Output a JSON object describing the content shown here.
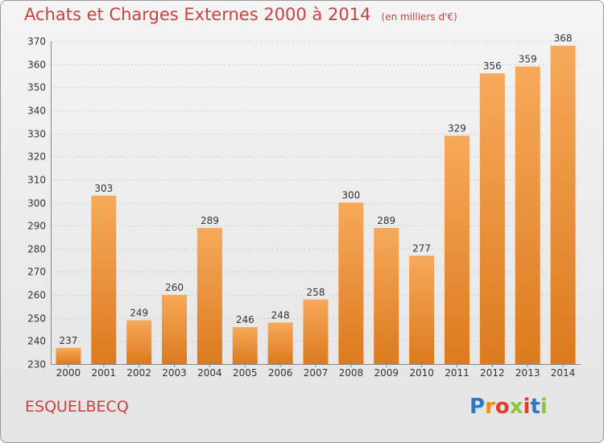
{
  "header": {
    "title": "Achats et Charges Externes 2000 à 2014",
    "unit": "(en milliers d'€)"
  },
  "footer": {
    "commune": "ESQUELBECQ",
    "logo_text": "Proxiti"
  },
  "colors": {
    "title": "#c9423f",
    "bar_top": "#f7a95a",
    "bar_bottom": "#dc7a1e",
    "grid": "#d0d0d0"
  },
  "chart_data": {
    "type": "bar",
    "title": "Achats et Charges Externes 2000 à 2014",
    "subtitle": "(en milliers d'€)",
    "categories": [
      "2000",
      "2001",
      "2002",
      "2003",
      "2004",
      "2005",
      "2006",
      "2007",
      "2008",
      "2009",
      "2010",
      "2011",
      "2012",
      "2013",
      "2014"
    ],
    "values": [
      237,
      303,
      249,
      260,
      289,
      246,
      248,
      258,
      300,
      289,
      277,
      329,
      356,
      359,
      368
    ],
    "ylim": [
      230,
      370
    ],
    "yticks": [
      230,
      240,
      250,
      260,
      270,
      280,
      290,
      300,
      310,
      320,
      330,
      340,
      350,
      360,
      370
    ],
    "grid": true,
    "data_labels": true
  }
}
